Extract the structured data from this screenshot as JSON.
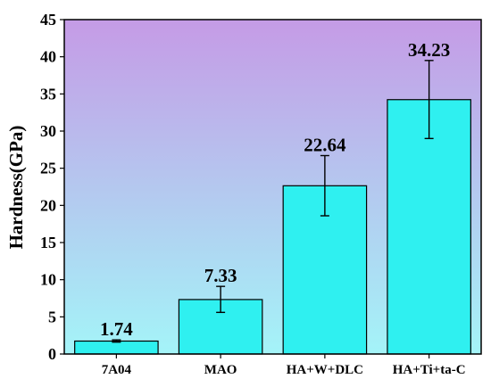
{
  "chart_data": {
    "type": "bar",
    "title": "",
    "xlabel": "",
    "ylabel": "Hardness(GPa)",
    "categories": [
      "7A04",
      "MAO",
      "HA+W+DLC",
      "HA+Ti+ta-C"
    ],
    "values": [
      1.74,
      7.33,
      22.64,
      34.23
    ],
    "value_labels": [
      "1.74",
      "7.33",
      "22.64",
      "34.23"
    ],
    "error_low": [
      1.6,
      5.6,
      18.6,
      29.0
    ],
    "error_high": [
      1.9,
      9.1,
      26.7,
      39.5
    ],
    "ylim": [
      0,
      45
    ],
    "yticks": [
      0,
      5,
      10,
      15,
      20,
      25,
      30,
      35,
      40,
      45
    ],
    "grid": false,
    "colors": {
      "bar_fill": "#2ff0f0",
      "bar_stroke": "#000000",
      "background_top": "#c59be6",
      "background_bottom": "#a4f4f8"
    }
  }
}
